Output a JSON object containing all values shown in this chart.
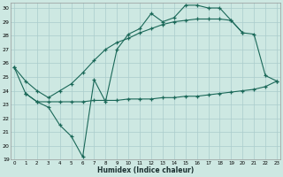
{
  "background_color": "#cde8e2",
  "grid_color": "#aacccc",
  "line_color": "#1a6858",
  "xlabel": "Humidex (Indice chaleur)",
  "xlim": [
    -0.3,
    23.3
  ],
  "ylim": [
    19,
    30.4
  ],
  "line1_x": [
    0,
    1,
    2,
    3,
    4,
    5,
    6,
    7,
    8,
    9,
    10,
    11,
    12,
    13,
    14,
    15,
    16,
    17,
    18,
    19,
    20
  ],
  "line1_y": [
    25.7,
    23.8,
    23.2,
    22.8,
    21.5,
    20.7,
    19.2,
    24.8,
    23.2,
    27.0,
    28.1,
    28.5,
    29.6,
    29.0,
    29.3,
    30.2,
    30.2,
    30.0,
    30.0,
    29.1,
    28.2
  ],
  "line2_x": [
    1,
    2,
    3,
    4,
    5,
    6,
    7,
    8,
    9,
    10,
    11,
    12,
    13,
    14,
    15,
    16,
    17,
    18,
    19,
    20,
    21,
    22,
    23
  ],
  "line2_y": [
    23.8,
    23.2,
    23.2,
    23.2,
    23.2,
    23.2,
    23.3,
    23.3,
    23.3,
    23.4,
    23.4,
    23.4,
    23.5,
    23.5,
    23.6,
    23.6,
    23.7,
    23.8,
    23.9,
    24.0,
    24.1,
    24.3,
    24.7
  ],
  "line3_x": [
    0,
    1,
    2,
    3,
    4,
    5,
    6,
    7,
    8,
    9,
    10,
    11,
    12,
    13,
    14,
    15,
    16,
    17,
    18,
    19,
    20,
    21,
    22,
    23
  ],
  "line3_y": [
    25.7,
    24.7,
    24.0,
    23.5,
    24.0,
    24.5,
    25.3,
    26.2,
    27.0,
    27.5,
    27.8,
    28.2,
    28.5,
    28.8,
    29.0,
    29.1,
    29.2,
    29.2,
    29.2,
    29.1,
    28.2,
    28.1,
    25.1,
    24.7
  ]
}
